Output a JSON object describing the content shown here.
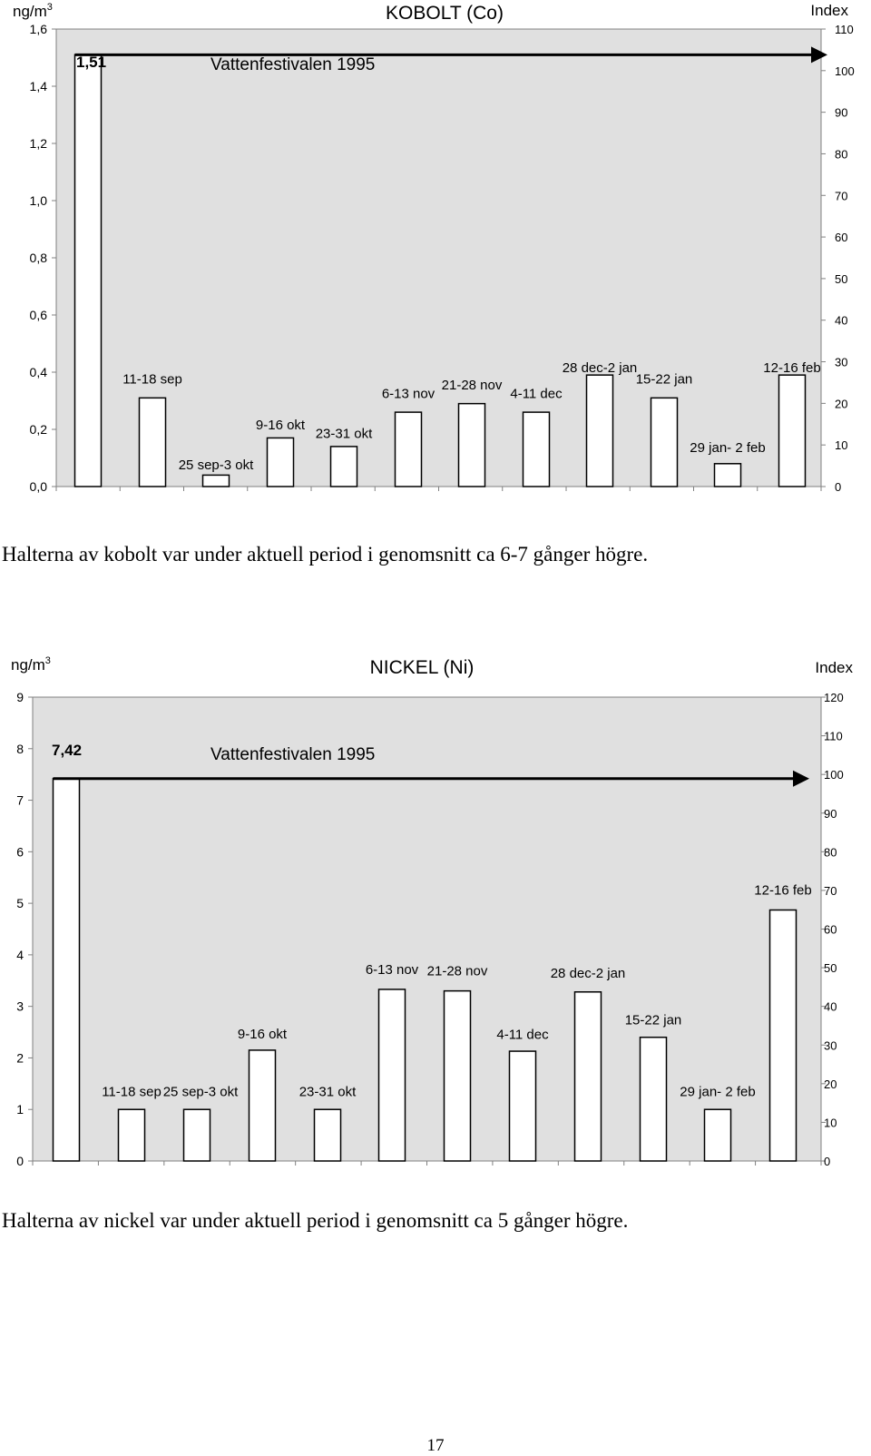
{
  "chart_data": [
    {
      "type": "bar",
      "title": "KOBOLT (Co)",
      "ylabel_left_base": "ng/m",
      "ylabel_left_sup": "3",
      "ylabel_right": "Index",
      "ylim": [
        0,
        1.6
      ],
      "yticks": [
        "0,0",
        "0,2",
        "0,4",
        "0,6",
        "0,8",
        "1,0",
        "1,2",
        "1,4",
        "1,6"
      ],
      "ylim_right": [
        0,
        110
      ],
      "yticks_right": [
        "0",
        "10",
        "20",
        "30",
        "40",
        "50",
        "60",
        "70",
        "80",
        "90",
        "100",
        "110"
      ],
      "grid": false,
      "reference": {
        "label": "Vattenfestivalen 1995",
        "value_label": "1,51",
        "value": 1.51
      },
      "categories": [
        "Vattenfestivalen 1995",
        "11-18 sep",
        "25 sep-3 okt",
        "9-16 okt",
        "23-31 okt",
        "6-13 nov",
        "21-28 nov",
        "4-11 dec",
        "28 dec-2 jan",
        "15-22 jan",
        "29 jan- 2 feb",
        "12-16 feb"
      ],
      "values": [
        1.51,
        0.31,
        0.04,
        0.17,
        0.14,
        0.26,
        0.29,
        0.26,
        0.39,
        0.31,
        0.08,
        0.39
      ],
      "label_values": [
        null,
        0.36,
        0.06,
        0.2,
        0.17,
        0.31,
        0.34,
        0.31,
        0.4,
        0.36,
        0.12,
        0.4
      ]
    },
    {
      "type": "bar",
      "title": "NICKEL (Ni)",
      "ylabel_left_base": "ng/m",
      "ylabel_left_sup": "3",
      "ylabel_right": "Index",
      "ylim": [
        0,
        9
      ],
      "yticks": [
        "0",
        "1",
        "2",
        "3",
        "4",
        "5",
        "6",
        "7",
        "8",
        "9"
      ],
      "ylim_right": [
        0,
        120
      ],
      "yticks_right": [
        "0",
        "10",
        "20",
        "30",
        "40",
        "50",
        "60",
        "70",
        "80",
        "90",
        "100",
        "110",
        "120"
      ],
      "grid": false,
      "reference": {
        "label": "Vattenfestivalen 1995",
        "value_label": "7,42",
        "value": 7.42
      },
      "categories": [
        "Vattenfestivalen 1995",
        "11-18 sep",
        "25 sep-3 okt",
        "9-16 okt",
        "23-31 okt",
        "6-13 nov",
        "21-28 nov",
        "4-11 dec",
        "28 dec-2 jan",
        "15-22 jan",
        "29 jan- 2 feb",
        "12-16 feb"
      ],
      "values": [
        7.42,
        1.0,
        1.0,
        2.15,
        1.0,
        3.33,
        3.3,
        2.13,
        3.28,
        2.4,
        1.0,
        4.87
      ],
      "label_values": [
        null,
        1.26,
        1.26,
        2.38,
        1.26,
        3.63,
        3.6,
        2.37,
        3.56,
        2.65,
        1.26,
        5.17
      ]
    }
  ],
  "captions": {
    "cobalt": "Halterna av kobolt var under aktuell period i genomsnitt ca 6-7 gånger högre.",
    "nickel": "Halterna av nickel var under aktuell period i genomsnitt ca 5 gånger högre."
  },
  "page_number": "17"
}
